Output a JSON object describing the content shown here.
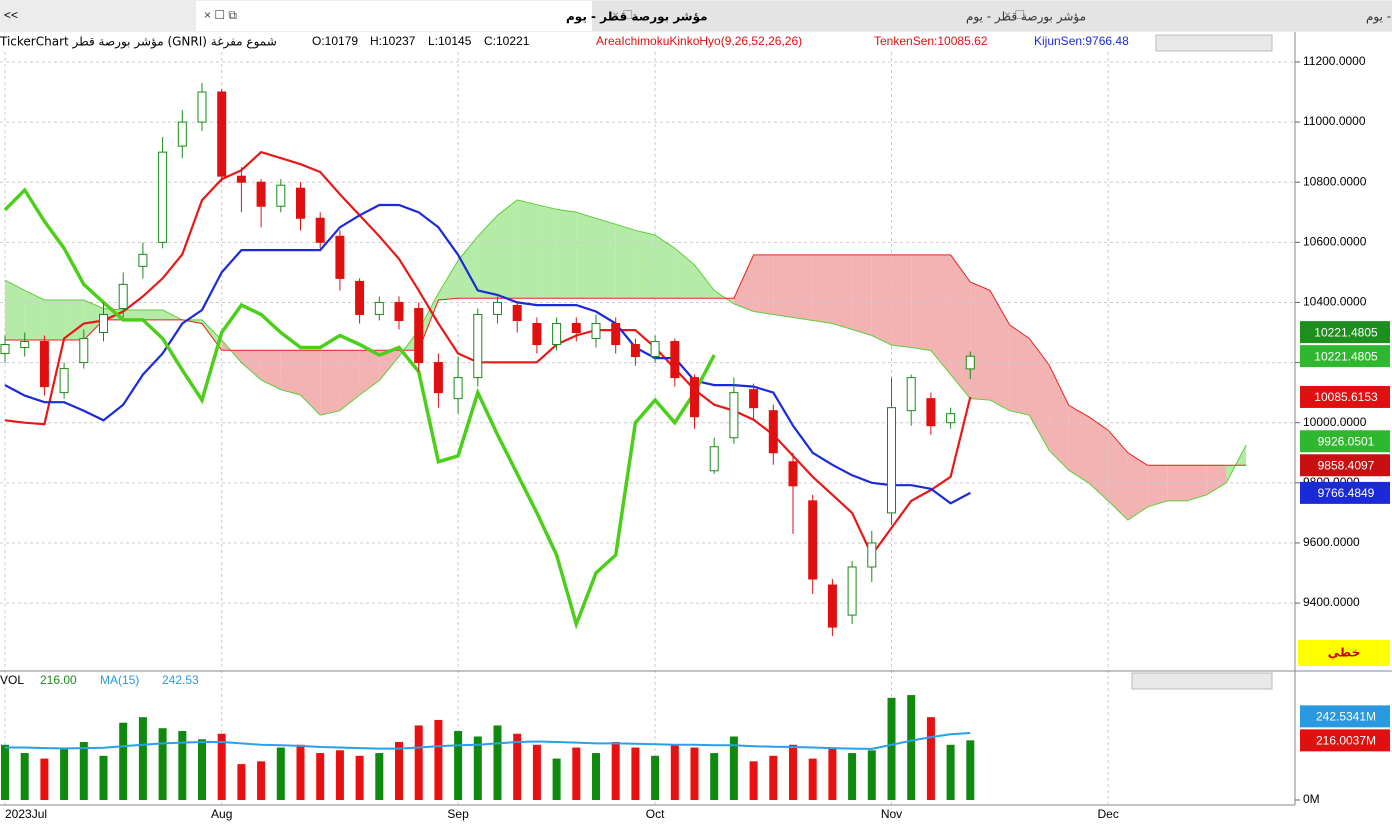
{
  "tabs": [
    "مؤشر بورصة قطر - يوم",
    "مؤشر بورصة قطر - يوم",
    "مؤشر بورصة قطر - يوم"
  ],
  "nav": "<<",
  "info": {
    "symbol": "TickerChart مؤشر بورصة قطر (GNRI)  شموع مفرغة",
    "open": "O:10179",
    "high": "H:10237",
    "low": "L:10145",
    "close": "C:10221",
    "indicator": "AreaIchimokuKinkoHyo(9,26,52,26,26)",
    "tenkan": "TenkenSen:10085.62",
    "kijun": "KijunSen:9766.48"
  },
  "volume_info": {
    "name": "VOL",
    "value": "216.00",
    "ma": "MA(15)",
    "ma_value": "242.53"
  },
  "scale_mode": "خطي",
  "chart_data": [
    {
      "type": "candlestick",
      "up_color": "#1a8a1a",
      "down_color": "#e01010",
      "ylim": [
        9184,
        11273
      ],
      "yticks": [
        {
          "value": 9400,
          "label": "9400.0000"
        },
        {
          "value": 9600,
          "label": "9600.0000"
        },
        {
          "value": 9800,
          "label": "9800.0000"
        },
        {
          "value": 10000,
          "label": "10000.0000"
        },
        {
          "value": 10200,
          "label": "10200.0000"
        },
        {
          "value": 10400,
          "label": "10400.0000"
        },
        {
          "value": 10600,
          "label": "10600.0000"
        },
        {
          "value": 10800,
          "label": "10800.0000"
        },
        {
          "value": 11000,
          "label": "11000.0000"
        },
        {
          "value": 11200,
          "label": "11200.0000"
        }
      ],
      "grid": true,
      "open": [
        10230,
        10250,
        10270,
        10100,
        10200,
        10300,
        10380,
        10520,
        10600,
        10920,
        11000,
        11100,
        10820,
        10800,
        10720,
        10780,
        10680,
        10620,
        10470,
        10360,
        10400,
        10380,
        10200,
        10080,
        10150,
        10360,
        10390,
        10330,
        10260,
        10330,
        10280,
        10330,
        10260,
        10220,
        10270,
        10150,
        9840,
        9950,
        10110,
        10040,
        9870,
        9740,
        9460,
        9360,
        9520,
        9700,
        10040,
        10080,
        10000,
        10179,
        null,
        null,
        null,
        null,
        null,
        null,
        null,
        null,
        null,
        null,
        null,
        null,
        null,
        null
      ],
      "high": [
        10290,
        10300,
        10290,
        10200,
        10310,
        10400,
        10500,
        10600,
        10950,
        11040,
        11130,
        11110,
        10850,
        10810,
        10810,
        10800,
        10700,
        10640,
        10480,
        10420,
        10420,
        10400,
        10230,
        10220,
        10380,
        10420,
        10400,
        10350,
        10350,
        10350,
        10360,
        10350,
        10280,
        10290,
        10280,
        10160,
        9950,
        10150,
        10130,
        10060,
        9900,
        9760,
        9480,
        9540,
        9640,
        10150,
        10160,
        10100,
        10050,
        10237,
        null,
        null,
        null,
        null,
        null,
        null,
        null,
        null,
        null,
        null,
        null,
        null,
        null,
        null
      ],
      "low": [
        10200,
        10220,
        10090,
        10080,
        10180,
        10270,
        10350,
        10480,
        10580,
        10880,
        10970,
        10800,
        10700,
        10650,
        10700,
        10640,
        10580,
        10440,
        10330,
        10340,
        10310,
        10170,
        10050,
        10030,
        10120,
        10330,
        10300,
        10230,
        10240,
        10270,
        10250,
        10230,
        10190,
        10200,
        10120,
        9980,
        9830,
        9930,
        10010,
        9860,
        9630,
        9430,
        9290,
        9330,
        9470,
        9660,
        9990,
        9960,
        9980,
        10145,
        null,
        null,
        null,
        null,
        null,
        null,
        null,
        null,
        null,
        null,
        null,
        null,
        null,
        null
      ],
      "close": [
        10260,
        10270,
        10120,
        10180,
        10280,
        10360,
        10460,
        10560,
        10900,
        11000,
        11100,
        10820,
        10800,
        10720,
        10790,
        10680,
        10600,
        10480,
        10360,
        10400,
        10340,
        10200,
        10100,
        10150,
        10360,
        10400,
        10340,
        10260,
        10330,
        10300,
        10330,
        10260,
        10220,
        10270,
        10150,
        10020,
        9920,
        10100,
        10050,
        9900,
        9790,
        9480,
        9320,
        9520,
        9600,
        10050,
        10150,
        9990,
        10030,
        10221,
        null,
        null,
        null,
        null,
        null,
        null,
        null,
        null,
        null,
        null,
        null,
        null,
        null,
        null
      ],
      "lines": [
        {
          "name": "TenkenSen",
          "color": "#e81818",
          "width": 2.2,
          "values": [
            10008,
            10000,
            9995,
            10280,
            10330,
            10340,
            10370,
            10420,
            10480,
            10560,
            10740,
            10810,
            10840,
            10900,
            10880,
            10860,
            10834,
            10760,
            10690,
            10620,
            10545,
            10440,
            10330,
            10230,
            10201,
            10201,
            10201,
            10201,
            10260,
            10290,
            10308,
            10308,
            10308,
            10250,
            10180,
            10110,
            10060,
            10040,
            10010,
            9960,
            9890,
            9820,
            9760,
            9700,
            9560,
            9650,
            9740,
            9776,
            9820,
            10085.62,
            null,
            null,
            null,
            null,
            null,
            null,
            null,
            null,
            null,
            null,
            null,
            null,
            null,
            null
          ]
        },
        {
          "name": "KijunSen",
          "color": "#1a2ad8",
          "width": 2.2,
          "values": [
            10125,
            10090,
            10068,
            10068,
            10040,
            10008,
            10060,
            10160,
            10230,
            10330,
            10375,
            10500,
            10574,
            10574,
            10574,
            10574,
            10574,
            10650,
            10690,
            10724,
            10724,
            10700,
            10650,
            10558,
            10440,
            10425,
            10400,
            10391,
            10391,
            10391,
            10370,
            10330,
            10250,
            10215,
            10215,
            10140,
            10125,
            10125,
            10120,
            10100,
            9990,
            9900,
            9860,
            9825,
            9800,
            9792,
            9792,
            9780,
            9732,
            9766.48,
            null,
            null,
            null,
            null,
            null,
            null,
            null,
            null,
            null,
            null,
            null,
            null,
            null,
            null
          ]
        },
        {
          "name": "ChikouSpan",
          "color": "#4ccf1a",
          "width": 3.5,
          "values": [
            10708,
            10774,
            10670,
            10580,
            10460,
            10400,
            10342,
            10342,
            10280,
            10175,
            10075,
            10300,
            10391,
            10360,
            10300,
            10250,
            10250,
            10290,
            10260,
            10225,
            10250,
            10170,
            9870,
            9890,
            10100,
            9960,
            9830,
            9700,
            9560,
            9330,
            9500,
            9560,
            10000,
            10075,
            10000,
            10100,
            10225,
            null,
            null,
            null,
            null,
            null,
            null,
            null,
            null,
            null,
            null,
            null,
            null,
            null,
            null,
            null,
            null,
            null,
            null,
            null,
            null,
            null,
            null,
            null,
            null,
            null,
            null,
            null
          ]
        }
      ],
      "spanA": {
        "color": "#5ccf3a",
        "fill": "#9be58a",
        "values": [
          10474,
          10440,
          10408,
          10408,
          10408,
          10380,
          10375,
          10375,
          10375,
          10342,
          10342,
          10275,
          10200,
          10142,
          10110,
          10092,
          10025,
          10040,
          10092,
          10140,
          10220,
          10308,
          10430,
          10540,
          10620,
          10690,
          10741,
          10725,
          10710,
          10700,
          10680,
          10660,
          10640,
          10624,
          10580,
          10525,
          10440,
          10395,
          10370,
          10360,
          10350,
          10340,
          10330,
          10310,
          10290,
          10258,
          10250,
          10240,
          10160,
          10080,
          10075,
          10040,
          10025,
          9908,
          9842,
          9800,
          9740,
          9676,
          9720,
          9740,
          9740,
          9760,
          9800,
          9926.05
        ]
      },
      "spanB": {
        "color": "#e82020",
        "fill": "#f09a9a",
        "values": [
          10275,
          10275,
          10275,
          10275,
          10275,
          10342,
          10342,
          10342,
          10342,
          10342,
          10330,
          10241,
          10241,
          10241,
          10241,
          10241,
          10241,
          10241,
          10241,
          10241,
          10241,
          10241,
          10408,
          10414,
          10414,
          10414,
          10414,
          10414,
          10414,
          10414,
          10414,
          10414,
          10414,
          10414,
          10414,
          10414,
          10414,
          10414,
          10558,
          10558,
          10558,
          10558,
          10558,
          10558,
          10558,
          10558,
          10558,
          10558,
          10558,
          10468,
          10440,
          10325,
          10280,
          10192,
          10058,
          10020,
          9975,
          9900,
          9858.41,
          9858.41,
          9858.41,
          9858.41,
          9858.41,
          9858.41
        ]
      },
      "badges": [
        {
          "value": 10221.4805,
          "color": "#2fb82f"
        },
        {
          "value": 10221.4805,
          "color": "#1d8f1d"
        },
        {
          "value": 10085.6153,
          "color": "#e01010"
        },
        {
          "value": 9926.0501,
          "color": "#2fb82f"
        },
        {
          "value": 9858.4097,
          "color": "#c81010"
        },
        {
          "value": 9766.4849,
          "color": "#1a2ad8"
        }
      ]
    },
    {
      "type": "bar",
      "ylim": [
        0,
        460
      ],
      "yticks": [
        {
          "value": 0,
          "label": "0M"
        }
      ],
      "categories": [
        "2023Jul",
        null,
        null,
        null,
        null,
        null,
        null,
        null,
        null,
        null,
        null,
        "Aug",
        null,
        null,
        null,
        null,
        null,
        null,
        null,
        null,
        null,
        null,
        null,
        "Sep",
        null,
        null,
        null,
        null,
        null,
        null,
        null,
        null,
        null,
        "Oct",
        null,
        null,
        null,
        null,
        null,
        null,
        null,
        null,
        null,
        null,
        null,
        "Nov",
        null,
        null,
        null,
        null,
        null,
        null,
        null,
        null,
        null,
        null,
        "Dec",
        null,
        null,
        null,
        null,
        null,
        null,
        null
      ],
      "values": [
        200,
        170,
        150,
        190,
        210,
        160,
        280,
        300,
        260,
        250,
        220,
        240,
        130,
        140,
        190,
        200,
        170,
        180,
        160,
        170,
        210,
        270,
        290,
        250,
        230,
        270,
        240,
        200,
        150,
        190,
        170,
        210,
        190,
        160,
        200,
        190,
        170,
        230,
        140,
        160,
        200,
        150,
        190,
        170,
        180,
        370,
        380,
        300,
        200,
        216,
        null,
        null,
        null,
        null,
        null,
        null,
        null,
        null,
        null,
        null,
        null,
        null,
        null,
        null
      ],
      "ma": {
        "color": "#2aa0e8",
        "values": [
          190,
          190,
          188,
          187,
          188,
          189,
          195,
          200,
          205,
          208,
          210,
          210,
          205,
          200,
          198,
          196,
          192,
          190,
          188,
          186,
          186,
          190,
          195,
          198,
          200,
          205,
          210,
          212,
          210,
          208,
          205,
          205,
          204,
          202,
          200,
          200,
          198,
          198,
          195,
          193,
          192,
          190,
          188,
          186,
          185,
          200,
          215,
          228,
          238,
          242.53,
          null,
          null,
          null,
          null,
          null,
          null,
          null,
          null,
          null,
          null,
          null,
          null,
          null,
          null
        ]
      },
      "badges": [
        {
          "value": 242.5341,
          "label": "242.5341M",
          "color": "#2a9ae0"
        },
        {
          "value": 216.0037,
          "label": "216.0037M",
          "color": "#e01010"
        }
      ]
    }
  ]
}
